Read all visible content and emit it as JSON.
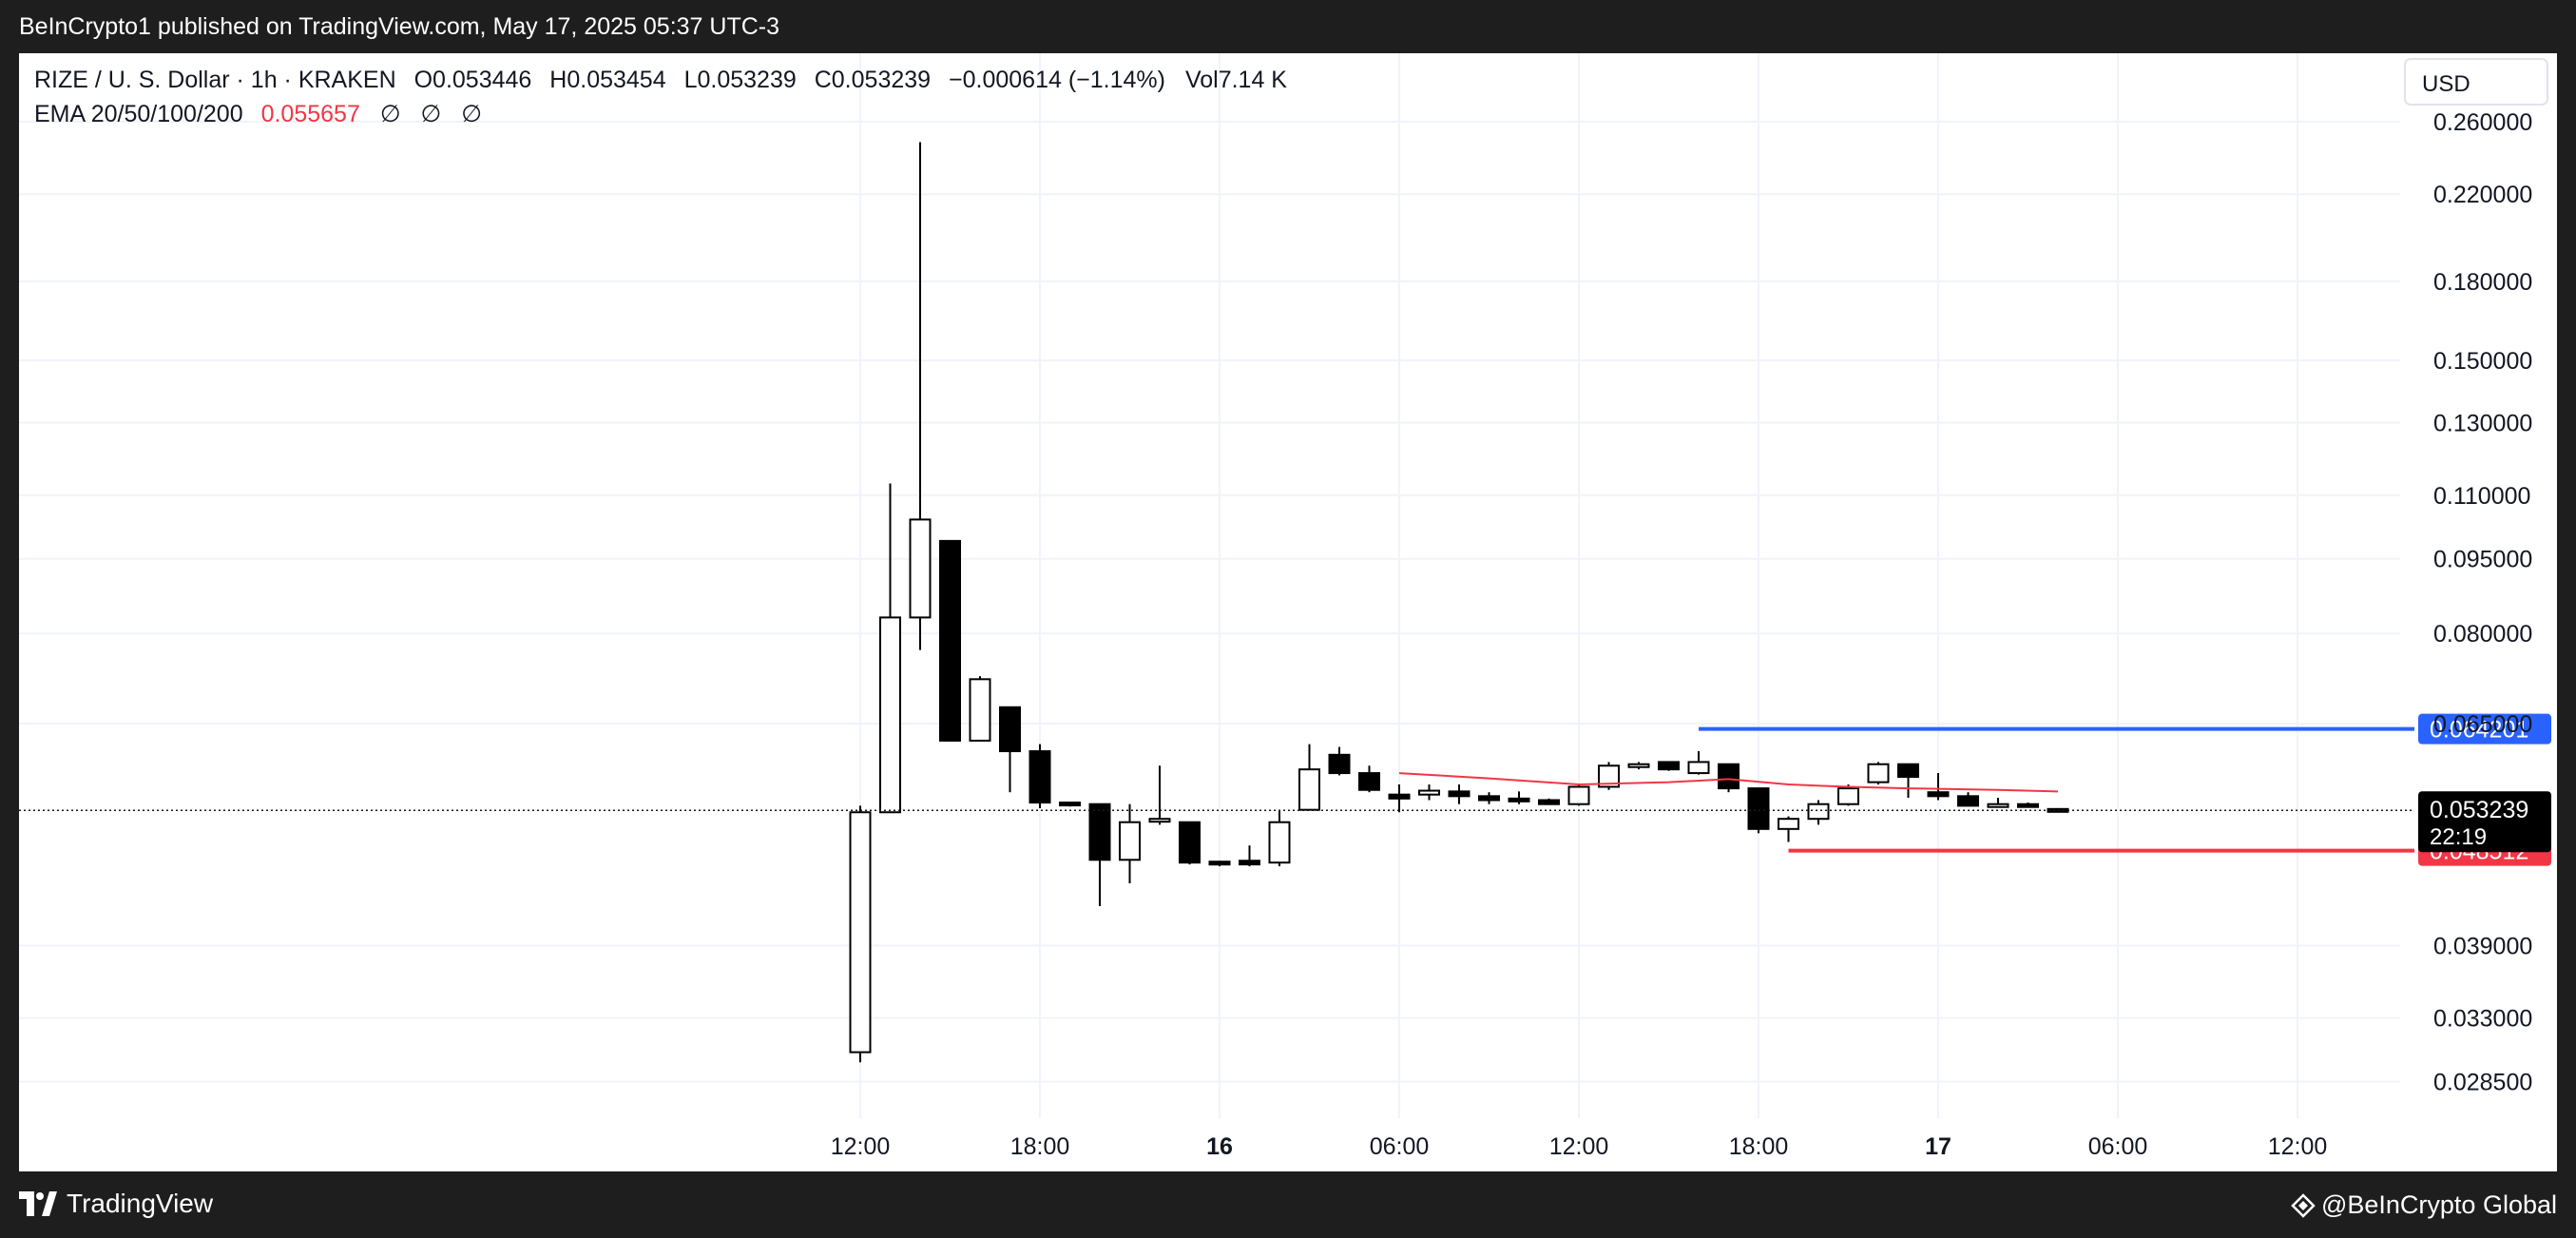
{
  "header": {
    "published": "BeInCrypto1 published on TradingView.com, May 17, 2025 05:37 UTC-3"
  },
  "symbol": {
    "name": "RIZE / U. S. Dollar · 1h · KRAKEN",
    "o_label": "O",
    "o": "0.053446",
    "h_label": "H",
    "h": "0.053454",
    "l_label": "L",
    "l": "0.053239",
    "c_label": "C",
    "c": "0.053239",
    "change": "−0.000614 (−1.14%)",
    "vol_label": "Vol",
    "vol": "7.14 K"
  },
  "indicator": {
    "label": "EMA 20/50/100/200",
    "value": "0.055657",
    "na": [
      "∅",
      "∅",
      "∅"
    ]
  },
  "currency": "USD",
  "chart_data": {
    "type": "candlestick",
    "y_scale": "log",
    "y_ticks": [
      "0.260000",
      "0.220000",
      "0.180000",
      "0.150000",
      "0.130000",
      "0.110000",
      "0.095000",
      "0.080000",
      "0.065000",
      "0.039000",
      "0.033000",
      "0.028500"
    ],
    "x_ticks": [
      {
        "label": "12:00",
        "t": 12,
        "bold": false
      },
      {
        "label": "18:00",
        "t": 18,
        "bold": false
      },
      {
        "label": "16",
        "t": 24,
        "bold": true
      },
      {
        "label": "06:00",
        "t": 30,
        "bold": false
      },
      {
        "label": "12:00",
        "t": 36,
        "bold": false
      },
      {
        "label": "18:00",
        "t": 42,
        "bold": false
      },
      {
        "label": "17",
        "t": 48,
        "bold": true
      },
      {
        "label": "06:00",
        "t": 54,
        "bold": false
      },
      {
        "label": "12:00",
        "t": 60,
        "bold": false
      }
    ],
    "candles": [
      {
        "t": 12,
        "o": 0.0305,
        "h": 0.0538,
        "l": 0.0298,
        "c": 0.053
      },
      {
        "t": 13,
        "o": 0.053,
        "h": 0.113,
        "l": 0.053,
        "c": 0.083
      },
      {
        "t": 14,
        "o": 0.083,
        "h": 0.248,
        "l": 0.077,
        "c": 0.104
      },
      {
        "t": 15,
        "o": 0.099,
        "h": 0.099,
        "l": 0.0625,
        "c": 0.0625
      },
      {
        "t": 16,
        "o": 0.0625,
        "h": 0.0725,
        "l": 0.0625,
        "c": 0.072
      },
      {
        "t": 17,
        "o": 0.0675,
        "h": 0.0675,
        "l": 0.0555,
        "c": 0.061
      },
      {
        "t": 18,
        "o": 0.061,
        "h": 0.062,
        "l": 0.0535,
        "c": 0.0542
      },
      {
        "t": 19,
        "o": 0.0542,
        "h": 0.0542,
        "l": 0.0537,
        "c": 0.0539
      },
      {
        "t": 20,
        "o": 0.054,
        "h": 0.054,
        "l": 0.0427,
        "c": 0.0475
      },
      {
        "t": 21,
        "o": 0.0475,
        "h": 0.054,
        "l": 0.045,
        "c": 0.0518
      },
      {
        "t": 22,
        "o": 0.052,
        "h": 0.059,
        "l": 0.0515,
        "c": 0.0522
      },
      {
        "t": 23,
        "o": 0.0518,
        "h": 0.0518,
        "l": 0.047,
        "c": 0.0472
      },
      {
        "t": 24,
        "o": 0.0473,
        "h": 0.0474,
        "l": 0.0468,
        "c": 0.047
      },
      {
        "t": 25,
        "o": 0.0474,
        "h": 0.0491,
        "l": 0.0468,
        "c": 0.047
      },
      {
        "t": 26,
        "o": 0.0472,
        "h": 0.0533,
        "l": 0.0468,
        "c": 0.0518
      },
      {
        "t": 27,
        "o": 0.0533,
        "h": 0.062,
        "l": 0.0532,
        "c": 0.0585
      },
      {
        "t": 28,
        "o": 0.0605,
        "h": 0.0616,
        "l": 0.0577,
        "c": 0.058
      },
      {
        "t": 29,
        "o": 0.058,
        "h": 0.059,
        "l": 0.0555,
        "c": 0.0558
      },
      {
        "t": 30,
        "o": 0.0552,
        "h": 0.0565,
        "l": 0.053,
        "c": 0.0547
      },
      {
        "t": 31,
        "o": 0.0552,
        "h": 0.0565,
        "l": 0.0545,
        "c": 0.0557
      },
      {
        "t": 32,
        "o": 0.0556,
        "h": 0.0565,
        "l": 0.054,
        "c": 0.055
      },
      {
        "t": 33,
        "o": 0.055,
        "h": 0.0555,
        "l": 0.054,
        "c": 0.0545
      },
      {
        "t": 34,
        "o": 0.0547,
        "h": 0.0556,
        "l": 0.054,
        "c": 0.0546
      },
      {
        "t": 35,
        "o": 0.0545,
        "h": 0.0547,
        "l": 0.0539,
        "c": 0.054
      },
      {
        "t": 36,
        "o": 0.054,
        "h": 0.0565,
        "l": 0.0538,
        "c": 0.0562
      },
      {
        "t": 37,
        "o": 0.0562,
        "h": 0.0595,
        "l": 0.0558,
        "c": 0.059
      },
      {
        "t": 38,
        "o": 0.059,
        "h": 0.0595,
        "l": 0.0585,
        "c": 0.0592
      },
      {
        "t": 39,
        "o": 0.0595,
        "h": 0.0595,
        "l": 0.0583,
        "c": 0.0585
      },
      {
        "t": 40,
        "o": 0.058,
        "h": 0.061,
        "l": 0.0578,
        "c": 0.0595
      },
      {
        "t": 41,
        "o": 0.0592,
        "h": 0.0592,
        "l": 0.0555,
        "c": 0.056
      },
      {
        "t": 42,
        "o": 0.056,
        "h": 0.056,
        "l": 0.0505,
        "c": 0.051
      },
      {
        "t": 43,
        "o": 0.051,
        "h": 0.0525,
        "l": 0.0495,
        "c": 0.0522
      },
      {
        "t": 44,
        "o": 0.0522,
        "h": 0.0545,
        "l": 0.0515,
        "c": 0.054
      },
      {
        "t": 45,
        "o": 0.054,
        "h": 0.0565,
        "l": 0.0538,
        "c": 0.056
      },
      {
        "t": 46,
        "o": 0.0568,
        "h": 0.0595,
        "l": 0.0565,
        "c": 0.0592
      },
      {
        "t": 47,
        "o": 0.0592,
        "h": 0.0593,
        "l": 0.0548,
        "c": 0.0575
      },
      {
        "t": 48,
        "o": 0.0555,
        "h": 0.058,
        "l": 0.0545,
        "c": 0.055
      },
      {
        "t": 49,
        "o": 0.055,
        "h": 0.0555,
        "l": 0.0538,
        "c": 0.0538
      },
      {
        "t": 50,
        "o": 0.0538,
        "h": 0.0548,
        "l": 0.0536,
        "c": 0.054
      },
      {
        "t": 51,
        "o": 0.054,
        "h": 0.0542,
        "l": 0.0536,
        "c": 0.0538
      },
      {
        "t": 52,
        "o": 0.0534,
        "h": 0.0535,
        "l": 0.0532,
        "c": 0.0532
      }
    ],
    "ema": {
      "name": "EMA 20",
      "color": "#f23645",
      "points": [
        {
          "t": 30,
          "v": 0.058
        },
        {
          "t": 33,
          "v": 0.0573
        },
        {
          "t": 36,
          "v": 0.0565
        },
        {
          "t": 39,
          "v": 0.0568
        },
        {
          "t": 41,
          "v": 0.0572
        },
        {
          "t": 43,
          "v": 0.0565
        },
        {
          "t": 45,
          "v": 0.0562
        },
        {
          "t": 47,
          "v": 0.056
        },
        {
          "t": 50,
          "v": 0.0558
        },
        {
          "t": 52,
          "v": 0.0556
        }
      ]
    },
    "resistance": {
      "value": 0.064201,
      "label": "0.064201",
      "start_t": 40,
      "color": "#2962ff"
    },
    "support": {
      "value": 0.048512,
      "label": "0.048512",
      "start_t": 43,
      "color": "#f23645"
    },
    "last_price": {
      "value": 0.053239,
      "label": "0.053239",
      "countdown": "22:19"
    },
    "ylim": [
      0.0262,
      0.285
    ]
  },
  "footer": {
    "brand": "TradingView",
    "watermark": "@BeInCrypto Global"
  }
}
